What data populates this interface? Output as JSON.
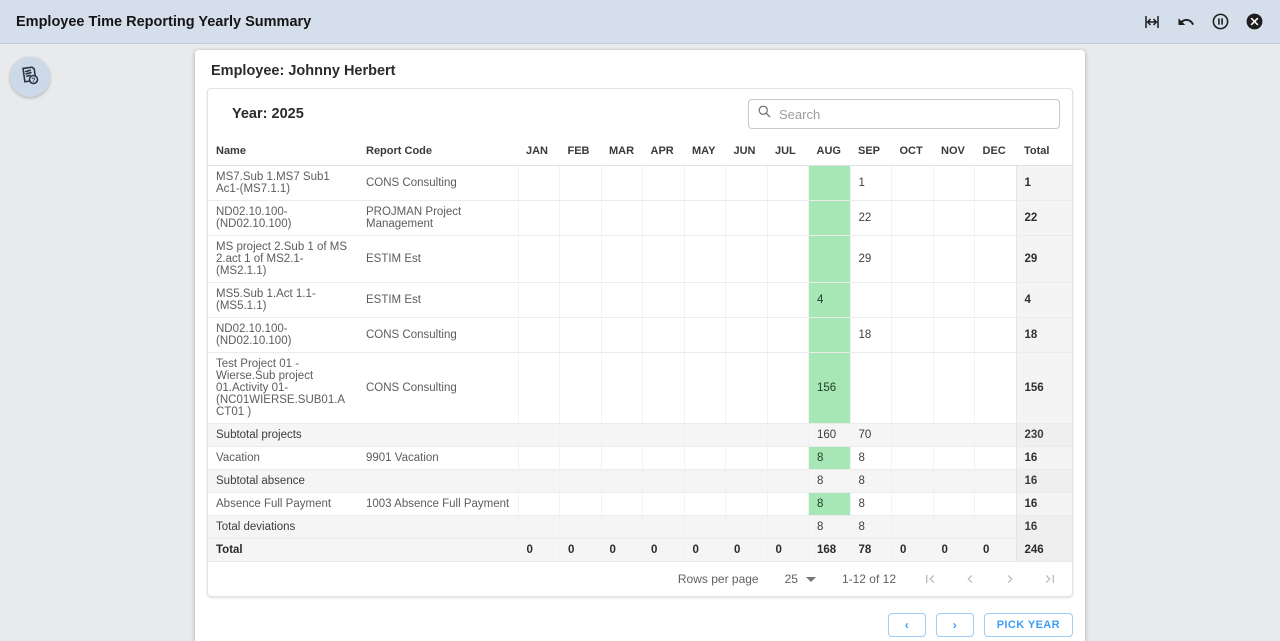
{
  "topbar": {
    "title": "Employee Time Reporting Yearly Summary",
    "icons": [
      "fit-width-icon",
      "undo-icon",
      "pause-icon",
      "close-icon"
    ]
  },
  "floating_button": {
    "icon": "report-help-icon"
  },
  "card": {
    "employee_heading": "Employee: Johnny Herbert",
    "year_label": "Year: 2025"
  },
  "search": {
    "placeholder": "Search",
    "icon": "search-icon"
  },
  "table": {
    "columns": [
      "Name",
      "Report Code",
      "JAN",
      "FEB",
      "MAR",
      "APR",
      "MAY",
      "JUN",
      "JUL",
      "AUG",
      "SEP",
      "OCT",
      "NOV",
      "DEC",
      "Total"
    ],
    "highlight_month": "AUG",
    "highlight_month_index": 7,
    "highlight_color": "#a6e7b5",
    "rows": [
      {
        "kind": "data",
        "name": "MS7.Sub 1.MS7 Sub1 Ac1-(MS7.1.1)",
        "code": "CONS Consulting",
        "months": [
          "",
          "",
          "",
          "",
          "",
          "",
          "",
          "",
          "1",
          "",
          "",
          ""
        ],
        "total": "1"
      },
      {
        "kind": "data",
        "name": "ND02.10.100-(ND02.10.100)",
        "code": "PROJMAN Project Management",
        "months": [
          "",
          "",
          "",
          "",
          "",
          "",
          "",
          "",
          "22",
          "",
          "",
          ""
        ],
        "total": "22"
      },
      {
        "kind": "data",
        "name": "MS project 2.Sub 1 of MS 2.act 1 of MS2.1-(MS2.1.1)",
        "code": "ESTIM Est",
        "months": [
          "",
          "",
          "",
          "",
          "",
          "",
          "",
          "",
          "29",
          "",
          "",
          ""
        ],
        "total": "29"
      },
      {
        "kind": "data",
        "name": "MS5.Sub 1.Act 1.1-(MS5.1.1)",
        "code": "ESTIM Est",
        "months": [
          "",
          "",
          "",
          "",
          "",
          "",
          "",
          "4",
          "",
          "",
          "",
          ""
        ],
        "total": "4"
      },
      {
        "kind": "data",
        "name": "ND02.10.100-(ND02.10.100)",
        "code": "CONS Consulting",
        "months": [
          "",
          "",
          "",
          "",
          "",
          "",
          "",
          "",
          "18",
          "",
          "",
          ""
        ],
        "total": "18"
      },
      {
        "kind": "data",
        "name": "Test Project 01 - Wierse.Sub project 01.Activity 01-(NC01WIERSE.SUB01.ACT01 )",
        "code": "CONS Consulting",
        "months": [
          "",
          "",
          "",
          "",
          "",
          "",
          "",
          "156",
          "",
          "",
          "",
          ""
        ],
        "total": "156"
      },
      {
        "kind": "subtotal",
        "name": "Subtotal projects",
        "code": "",
        "months": [
          "",
          "",
          "",
          "",
          "",
          "",
          "",
          "160",
          "70",
          "",
          "",
          ""
        ],
        "total": "230"
      },
      {
        "kind": "data",
        "name": "Vacation",
        "code": "9901 Vacation",
        "months": [
          "",
          "",
          "",
          "",
          "",
          "",
          "",
          "8",
          "8",
          "",
          "",
          ""
        ],
        "total": "16"
      },
      {
        "kind": "subtotal",
        "name": "Subtotal absence",
        "code": "",
        "months": [
          "",
          "",
          "",
          "",
          "",
          "",
          "",
          "8",
          "8",
          "",
          "",
          ""
        ],
        "total": "16"
      },
      {
        "kind": "data",
        "name": "Absence Full Payment",
        "code": "1003 Absence Full Payment",
        "months": [
          "",
          "",
          "",
          "",
          "",
          "",
          "",
          "8",
          "8",
          "",
          "",
          ""
        ],
        "total": "16"
      },
      {
        "kind": "subtotal",
        "name": "Total deviations",
        "code": "",
        "months": [
          "",
          "",
          "",
          "",
          "",
          "",
          "",
          "8",
          "8",
          "",
          "",
          ""
        ],
        "total": "16"
      },
      {
        "kind": "total",
        "name": "Total",
        "code": "",
        "months": [
          "0",
          "0",
          "0",
          "0",
          "0",
          "0",
          "0",
          "168",
          "78",
          "0",
          "0",
          "0"
        ],
        "total": "246"
      }
    ]
  },
  "pagination": {
    "rows_per_page_label": "Rows per page",
    "page_size": "25",
    "range_label": "1-12 of 12",
    "nav_icons": [
      "first-page-icon",
      "prev-page-icon",
      "next-page-icon",
      "last-page-icon"
    ]
  },
  "footer": {
    "prev_label": "‹",
    "next_label": "›",
    "pick_year_label": "PICK YEAR"
  }
}
